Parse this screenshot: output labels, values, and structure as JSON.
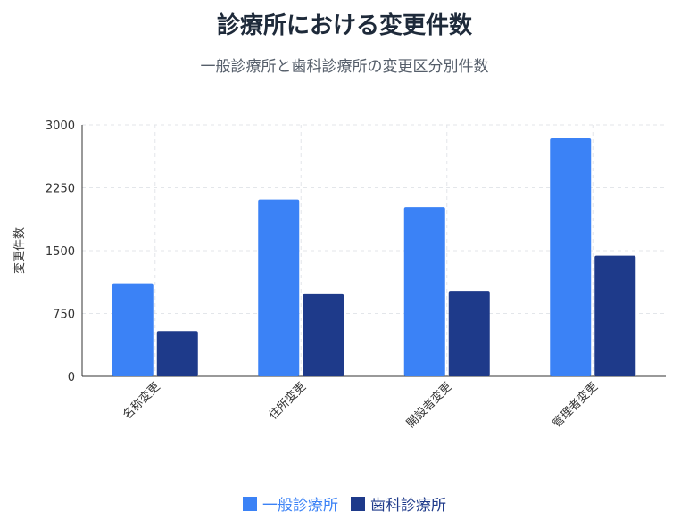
{
  "title": "診療所における変更件数",
  "subtitle": "一般診療所と歯科診療所の変更区分別件数",
  "chart_data": {
    "type": "bar",
    "categories": [
      "名称変更",
      "住所変更",
      "開設者変更",
      "管理者変更"
    ],
    "series": [
      {
        "name": "一般診療所",
        "values": [
          1110,
          2110,
          2020,
          2840
        ],
        "color": "#3b82f6"
      },
      {
        "name": "歯科診療所",
        "values": [
          540,
          980,
          1020,
          1440
        ],
        "color": "#1e3a8a"
      }
    ],
    "xlabel": "",
    "ylabel": "変更件数",
    "ylim": [
      0,
      3000
    ],
    "yticks": [
      0,
      750,
      1500,
      2250,
      3000
    ],
    "grid": true,
    "legend": "bottom"
  }
}
